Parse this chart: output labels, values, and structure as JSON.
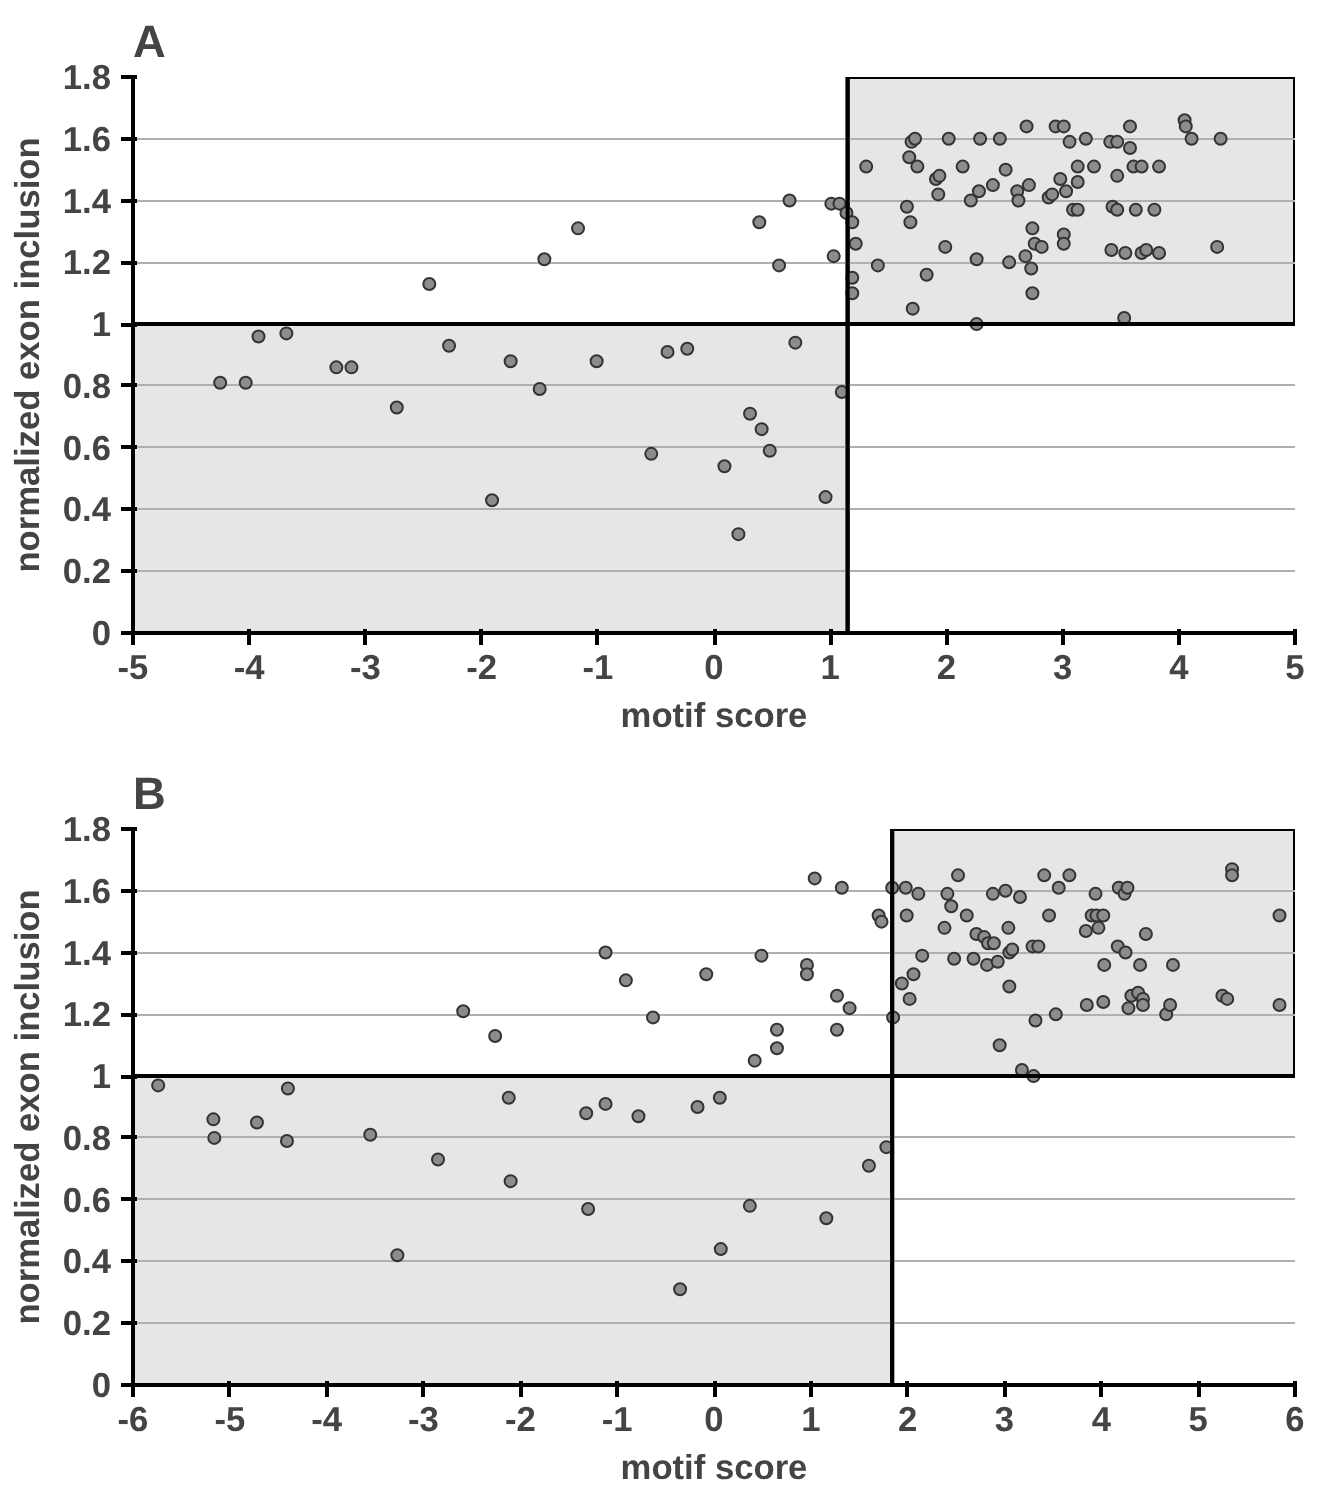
{
  "chart_data": [
    {
      "type": "scatter",
      "title": "A",
      "xlabel": "motif score",
      "ylabel": "normalized exon inclusion",
      "xlim": [
        -5,
        5
      ],
      "xticks": [
        -5,
        -4,
        -3,
        -2,
        -1,
        0,
        1,
        2,
        3,
        4,
        5
      ],
      "ylim": [
        0,
        1.8
      ],
      "yticks": [
        0,
        0.2,
        0.4,
        0.6,
        0.8,
        1,
        1.2,
        1.4,
        1.6,
        1.8
      ],
      "grid": "y",
      "marker": "circle",
      "ref_lines": [
        {
          "axis": "x",
          "value": 1.15,
          "color": "#000000"
        },
        {
          "axis": "y",
          "value": 1,
          "color": "#000000"
        }
      ],
      "bands": [
        {
          "axis": "y",
          "from": 0,
          "to": 1,
          "color": "#e6e6e6"
        },
        {
          "axis": "y",
          "from": 1,
          "to": 1.8,
          "color": "#e6e6e6"
        }
      ],
      "series": [
        {
          "color": "#8c8c8c",
          "x": [
            -4.25,
            -4.03,
            -3.92,
            -3.68,
            -3.25,
            -3.12,
            -2.73,
            -2.45,
            -2.28,
            -1.91,
            -1.75,
            -1.5,
            -1.46,
            -1.17,
            -1.01,
            -0.54,
            -0.4,
            -0.23,
            0.09,
            0.21,
            0.31,
            0.39,
            0.41,
            0.48,
            0.56,
            0.65,
            0.7,
            0.96,
            1.01,
            1.08,
            1.03,
            1.1,
            1.14,
            1.19,
            1.22,
            1.19,
            1.19,
            1.31,
            1.41,
            1.68,
            1.7,
            1.73,
            1.75,
            1.66,
            1.69,
            1.83,
            1.71,
            1.91,
            1.94,
            1.93,
            1.99,
            2.02,
            2.14,
            2.21,
            2.29,
            2.28,
            2.26,
            2.26,
            2.4,
            2.46,
            2.51,
            2.54,
            2.61,
            2.62,
            2.69,
            2.71,
            2.74,
            2.76,
            2.68,
            2.73,
            2.74,
            2.82,
            2.88,
            2.91,
            2.94,
            3.01,
            2.98,
            3.03,
            3.06,
            3.01,
            3.01,
            3.09,
            3.13,
            3.13,
            3.13,
            3.2,
            3.27,
            3.41,
            3.47,
            3.58,
            3.58,
            3.47,
            3.43,
            3.47,
            3.42,
            3.54,
            3.53,
            3.61,
            3.68,
            3.63,
            3.68,
            3.72,
            3.79,
            3.83,
            3.83,
            4.05,
            4.06,
            4.11,
            4.36,
            4.33
          ],
          "values": [
            0.81,
            0.81,
            0.96,
            0.97,
            0.86,
            0.86,
            0.73,
            1.13,
            0.93,
            0.43,
            0.88,
            0.79,
            1.21,
            1.31,
            0.88,
            0.58,
            0.91,
            0.92,
            0.54,
            0.32,
            0.71,
            1.33,
            0.66,
            0.59,
            1.19,
            1.4,
            0.94,
            0.44,
            1.39,
            1.39,
            1.22,
            0.78,
            1.36,
            1.33,
            1.26,
            1.15,
            1.1,
            1.51,
            1.19,
            1.54,
            1.59,
            1.6,
            1.51,
            1.38,
            1.33,
            1.16,
            1.05,
            1.47,
            1.48,
            1.42,
            1.25,
            1.6,
            1.51,
            1.4,
            1.6,
            1.43,
            1.21,
            1.0,
            1.45,
            1.6,
            1.5,
            1.2,
            1.43,
            1.4,
            1.64,
            1.45,
            1.31,
            1.26,
            1.22,
            1.18,
            1.1,
            1.25,
            1.41,
            1.42,
            1.64,
            1.64,
            1.47,
            1.43,
            1.59,
            1.29,
            1.26,
            1.37,
            1.37,
            1.46,
            1.51,
            1.6,
            1.51,
            1.59,
            1.59,
            1.64,
            1.57,
            1.48,
            1.38,
            1.37,
            1.24,
            1.23,
            1.02,
            1.51,
            1.51,
            1.37,
            1.23,
            1.24,
            1.37,
            1.23,
            1.51,
            1.66,
            1.64,
            1.6,
            1.6,
            1.25
          ]
        }
      ]
    },
    {
      "type": "scatter",
      "title": "B",
      "xlabel": "motif score",
      "ylabel": "normalized exon inclusion",
      "xlim": [
        -6,
        6
      ],
      "xticks": [
        -6,
        -5,
        -4,
        -3,
        -2,
        -1,
        0,
        1,
        2,
        3,
        4,
        5,
        6
      ],
      "ylim": [
        0,
        1.8
      ],
      "yticks": [
        0,
        0.2,
        0.4,
        0.6,
        0.8,
        1,
        1.2,
        1.4,
        1.6,
        1.8
      ],
      "grid": "y",
      "marker": "circle",
      "ref_lines": [
        {
          "axis": "x",
          "value": 1.84,
          "color": "#000000"
        },
        {
          "axis": "y",
          "value": 1,
          "color": "#000000"
        }
      ],
      "bands": [
        {
          "axis": "y",
          "from": 0,
          "to": 1,
          "color": "#e6e6e6"
        },
        {
          "axis": "y",
          "from": 1,
          "to": 1.8,
          "color": "#e6e6e6"
        }
      ],
      "series": [
        {
          "color": "#8c8c8c",
          "x": [
            -5.74,
            -5.17,
            -5.16,
            -4.72,
            -4.4,
            -4.41,
            -3.55,
            -3.27,
            -2.85,
            -2.59,
            -2.26,
            -2.12,
            -2.1,
            -1.32,
            -1.3,
            -1.12,
            -1.12,
            -0.91,
            -0.78,
            -0.63,
            -0.35,
            -0.17,
            -0.08,
            0.06,
            0.07,
            0.37,
            0.42,
            0.49,
            0.65,
            0.65,
            0.96,
            0.96,
            1.04,
            1.16,
            1.27,
            1.27,
            1.32,
            1.4,
            1.6,
            1.7,
            1.73,
            1.78,
            1.84,
            1.85,
            1.98,
            1.99,
            1.94,
            2.02,
            2.06,
            2.11,
            2.15,
            2.41,
            2.45,
            2.52,
            2.38,
            2.48,
            2.61,
            2.68,
            2.71,
            2.79,
            2.83,
            2.82,
            2.88,
            2.89,
            2.93,
            3.01,
            3.04,
            3.05,
            3.08,
            3.05,
            3.16,
            2.95,
            3.18,
            3.3,
            3.29,
            3.35,
            3.32,
            3.41,
            3.46,
            3.53,
            3.56,
            3.67,
            3.84,
            3.85,
            3.9,
            3.94,
            3.95,
            3.97,
            4.02,
            4.02,
            4.03,
            4.17,
            4.18,
            4.25,
            4.24,
            4.27,
            4.28,
            4.31,
            4.4,
            4.38,
            4.43,
            4.43,
            4.46,
            4.67,
            4.71,
            4.74,
            5.25,
            5.3,
            5.35,
            5.35,
            5.84,
            5.84
          ],
          "values": [
            0.97,
            0.86,
            0.8,
            0.85,
            0.96,
            0.79,
            0.81,
            0.42,
            0.73,
            1.21,
            1.13,
            0.93,
            0.66,
            0.88,
            0.57,
            1.4,
            0.91,
            1.31,
            0.87,
            1.19,
            0.31,
            0.9,
            1.33,
            0.93,
            0.44,
            0.58,
            1.05,
            1.39,
            1.09,
            1.15,
            1.36,
            1.33,
            1.64,
            0.54,
            1.26,
            1.15,
            1.61,
            1.22,
            0.71,
            1.52,
            1.5,
            0.77,
            1.61,
            1.19,
            1.61,
            1.52,
            1.3,
            1.25,
            1.33,
            1.59,
            1.39,
            1.59,
            1.55,
            1.65,
            1.48,
            1.38,
            1.52,
            1.38,
            1.46,
            1.45,
            1.43,
            1.36,
            1.59,
            1.43,
            1.37,
            1.6,
            1.48,
            1.4,
            1.41,
            1.29,
            1.58,
            1.1,
            1.02,
            1.0,
            1.42,
            1.42,
            1.18,
            1.65,
            1.52,
            1.2,
            1.61,
            1.65,
            1.47,
            1.23,
            1.52,
            1.59,
            1.52,
            1.48,
            1.52,
            1.24,
            1.36,
            1.42,
            1.61,
            1.4,
            1.59,
            1.61,
            1.22,
            1.26,
            1.36,
            1.27,
            1.25,
            1.23,
            1.46,
            1.2,
            1.23,
            1.36,
            1.26,
            1.25,
            1.67,
            1.65,
            1.52,
            1.23
          ]
        }
      ]
    }
  ]
}
